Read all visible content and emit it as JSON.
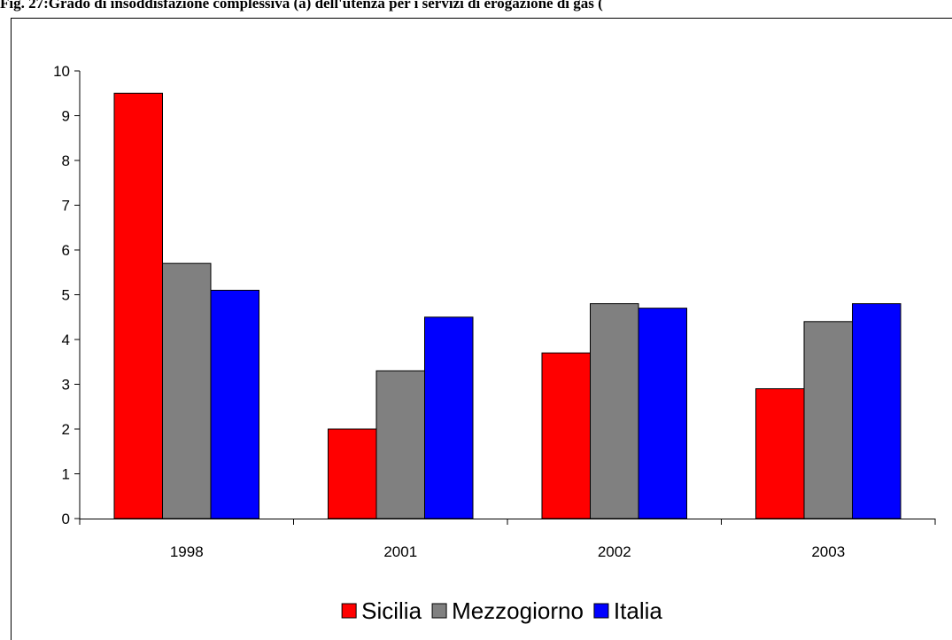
{
  "chart_data": {
    "type": "bar",
    "title": "Fig. 27:Grado di insoddisfazione complessiva (a) dell'utenza per i servizi di erogazione di gas (",
    "categories": [
      "1998",
      "2001",
      "2002",
      "2003"
    ],
    "series": [
      {
        "name": "Sicilia",
        "color": "#ff0000",
        "values": [
          9.5,
          2.0,
          3.7,
          2.9
        ]
      },
      {
        "name": "Mezzogiorno",
        "color": "#808080",
        "values": [
          5.7,
          3.3,
          4.8,
          4.4
        ]
      },
      {
        "name": "Italia",
        "color": "#0000ff",
        "values": [
          5.1,
          4.5,
          4.7,
          4.8
        ]
      }
    ],
    "ylim": [
      0,
      10
    ],
    "yticks": [
      0,
      1,
      2,
      3,
      4,
      5,
      6,
      7,
      8,
      9,
      10
    ],
    "grid": false,
    "legend": "bottom"
  }
}
